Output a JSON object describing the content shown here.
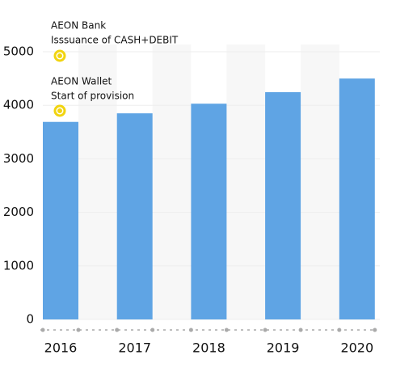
{
  "chart_data": {
    "type": "bar",
    "categories": [
      "2016",
      "2017",
      "2018",
      "2019",
      "2020"
    ],
    "values": [
      3690,
      3850,
      4030,
      4245,
      4500
    ],
    "color": "#5fa4e4",
    "ylim": [
      0,
      5000
    ],
    "yticks": [
      0,
      1000,
      2000,
      3000,
      4000,
      5000
    ],
    "grid": true,
    "annotations": [
      {
        "lines": [
          "AEON Bank",
          "Isssuance of CASH+DEBIT"
        ]
      },
      {
        "lines": [
          "AEON Wallet",
          "Start of provision"
        ]
      }
    ]
  }
}
